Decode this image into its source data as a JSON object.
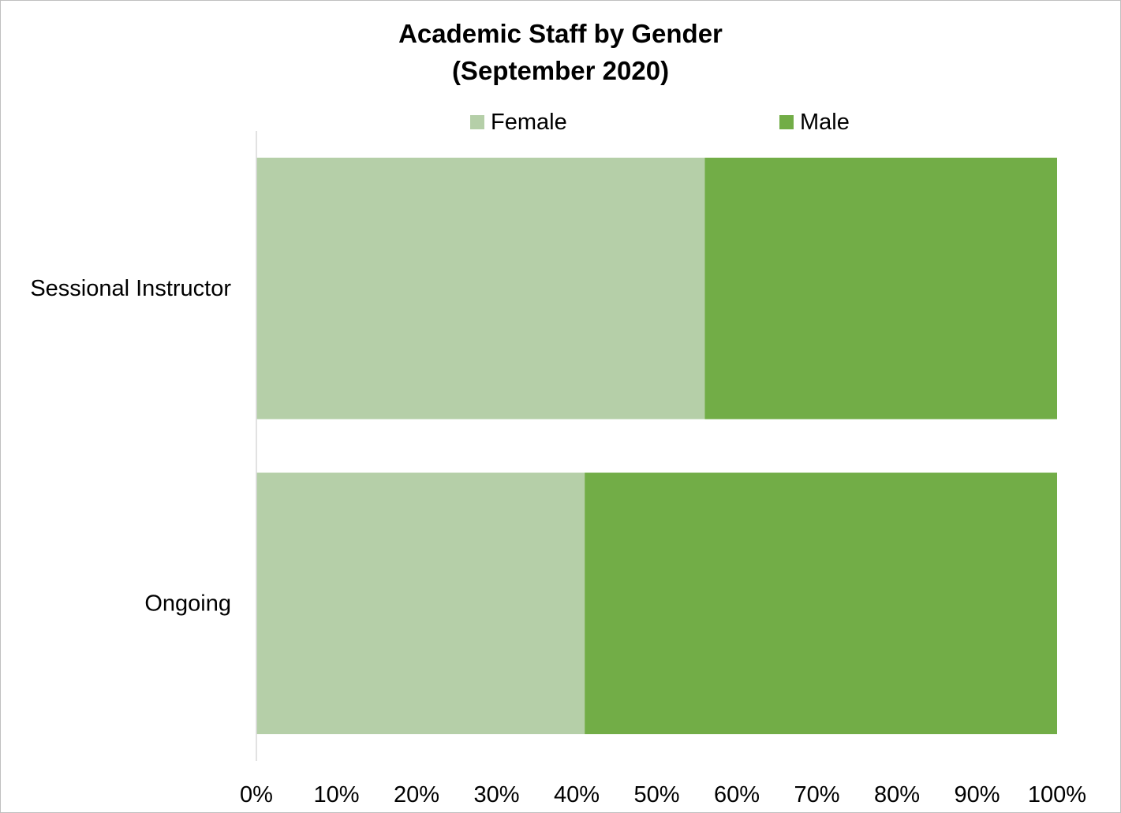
{
  "chart_data": {
    "type": "bar",
    "orientation": "horizontal",
    "stacked": "percent",
    "title": "Academic Staff by Gender",
    "subtitle": "(September 2020)",
    "categories": [
      "Sessional Instructor",
      "Ongoing"
    ],
    "series": [
      {
        "name": "Female",
        "color": "#b5cfa8",
        "values": [
          56,
          41
        ]
      },
      {
        "name": "Male",
        "color": "#72ad47",
        "values": [
          44,
          59
        ]
      }
    ],
    "xlim": [
      0,
      100
    ],
    "xticks": [
      "0%",
      "10%",
      "20%",
      "30%",
      "40%",
      "50%",
      "60%",
      "70%",
      "80%",
      "90%",
      "100%"
    ],
    "xlabel": "",
    "ylabel": "",
    "grid": false,
    "legend": "top"
  }
}
